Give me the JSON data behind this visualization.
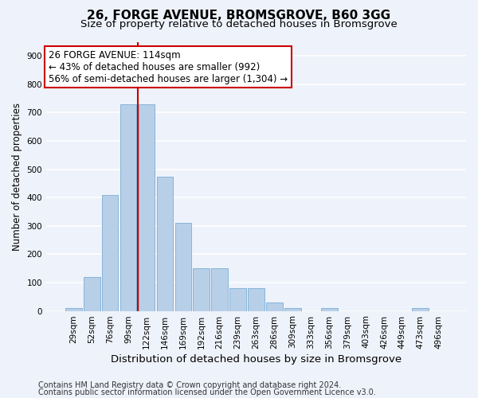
{
  "title1": "26, FORGE AVENUE, BROMSGROVE, B60 3GG",
  "title2": "Size of property relative to detached houses in Bromsgrove",
  "xlabel": "Distribution of detached houses by size in Bromsgrove",
  "ylabel": "Number of detached properties",
  "categories": [
    "29sqm",
    "52sqm",
    "76sqm",
    "99sqm",
    "122sqm",
    "146sqm",
    "169sqm",
    "192sqm",
    "216sqm",
    "239sqm",
    "263sqm",
    "286sqm",
    "309sqm",
    "333sqm",
    "356sqm",
    "379sqm",
    "403sqm",
    "426sqm",
    "449sqm",
    "473sqm",
    "496sqm"
  ],
  "values": [
    10,
    120,
    410,
    730,
    730,
    475,
    310,
    150,
    150,
    80,
    80,
    30,
    10,
    0,
    10,
    0,
    0,
    0,
    0,
    10,
    0
  ],
  "bar_color": "#b8cfe8",
  "bar_edge_color": "#7aadd4",
  "vline_color": "#cc0000",
  "vline_x": 3.5,
  "annotation_line1": "26 FORGE AVENUE: 114sqm",
  "annotation_line2": "← 43% of detached houses are smaller (992)",
  "annotation_line3": "56% of semi-detached houses are larger (1,304) →",
  "annotation_box_color": "#ffffff",
  "annotation_box_edge": "#cc0000",
  "ylim": [
    0,
    950
  ],
  "yticks": [
    0,
    100,
    200,
    300,
    400,
    500,
    600,
    700,
    800,
    900
  ],
  "footer1": "Contains HM Land Registry data © Crown copyright and database right 2024.",
  "footer2": "Contains public sector information licensed under the Open Government Licence v3.0.",
  "bg_color": "#eef2fa",
  "grid_color": "#ffffff",
  "title1_fontsize": 11,
  "title2_fontsize": 9.5,
  "xlabel_fontsize": 9.5,
  "ylabel_fontsize": 8.5,
  "tick_fontsize": 7.5,
  "annotation_fontsize": 8.5,
  "footer_fontsize": 7
}
